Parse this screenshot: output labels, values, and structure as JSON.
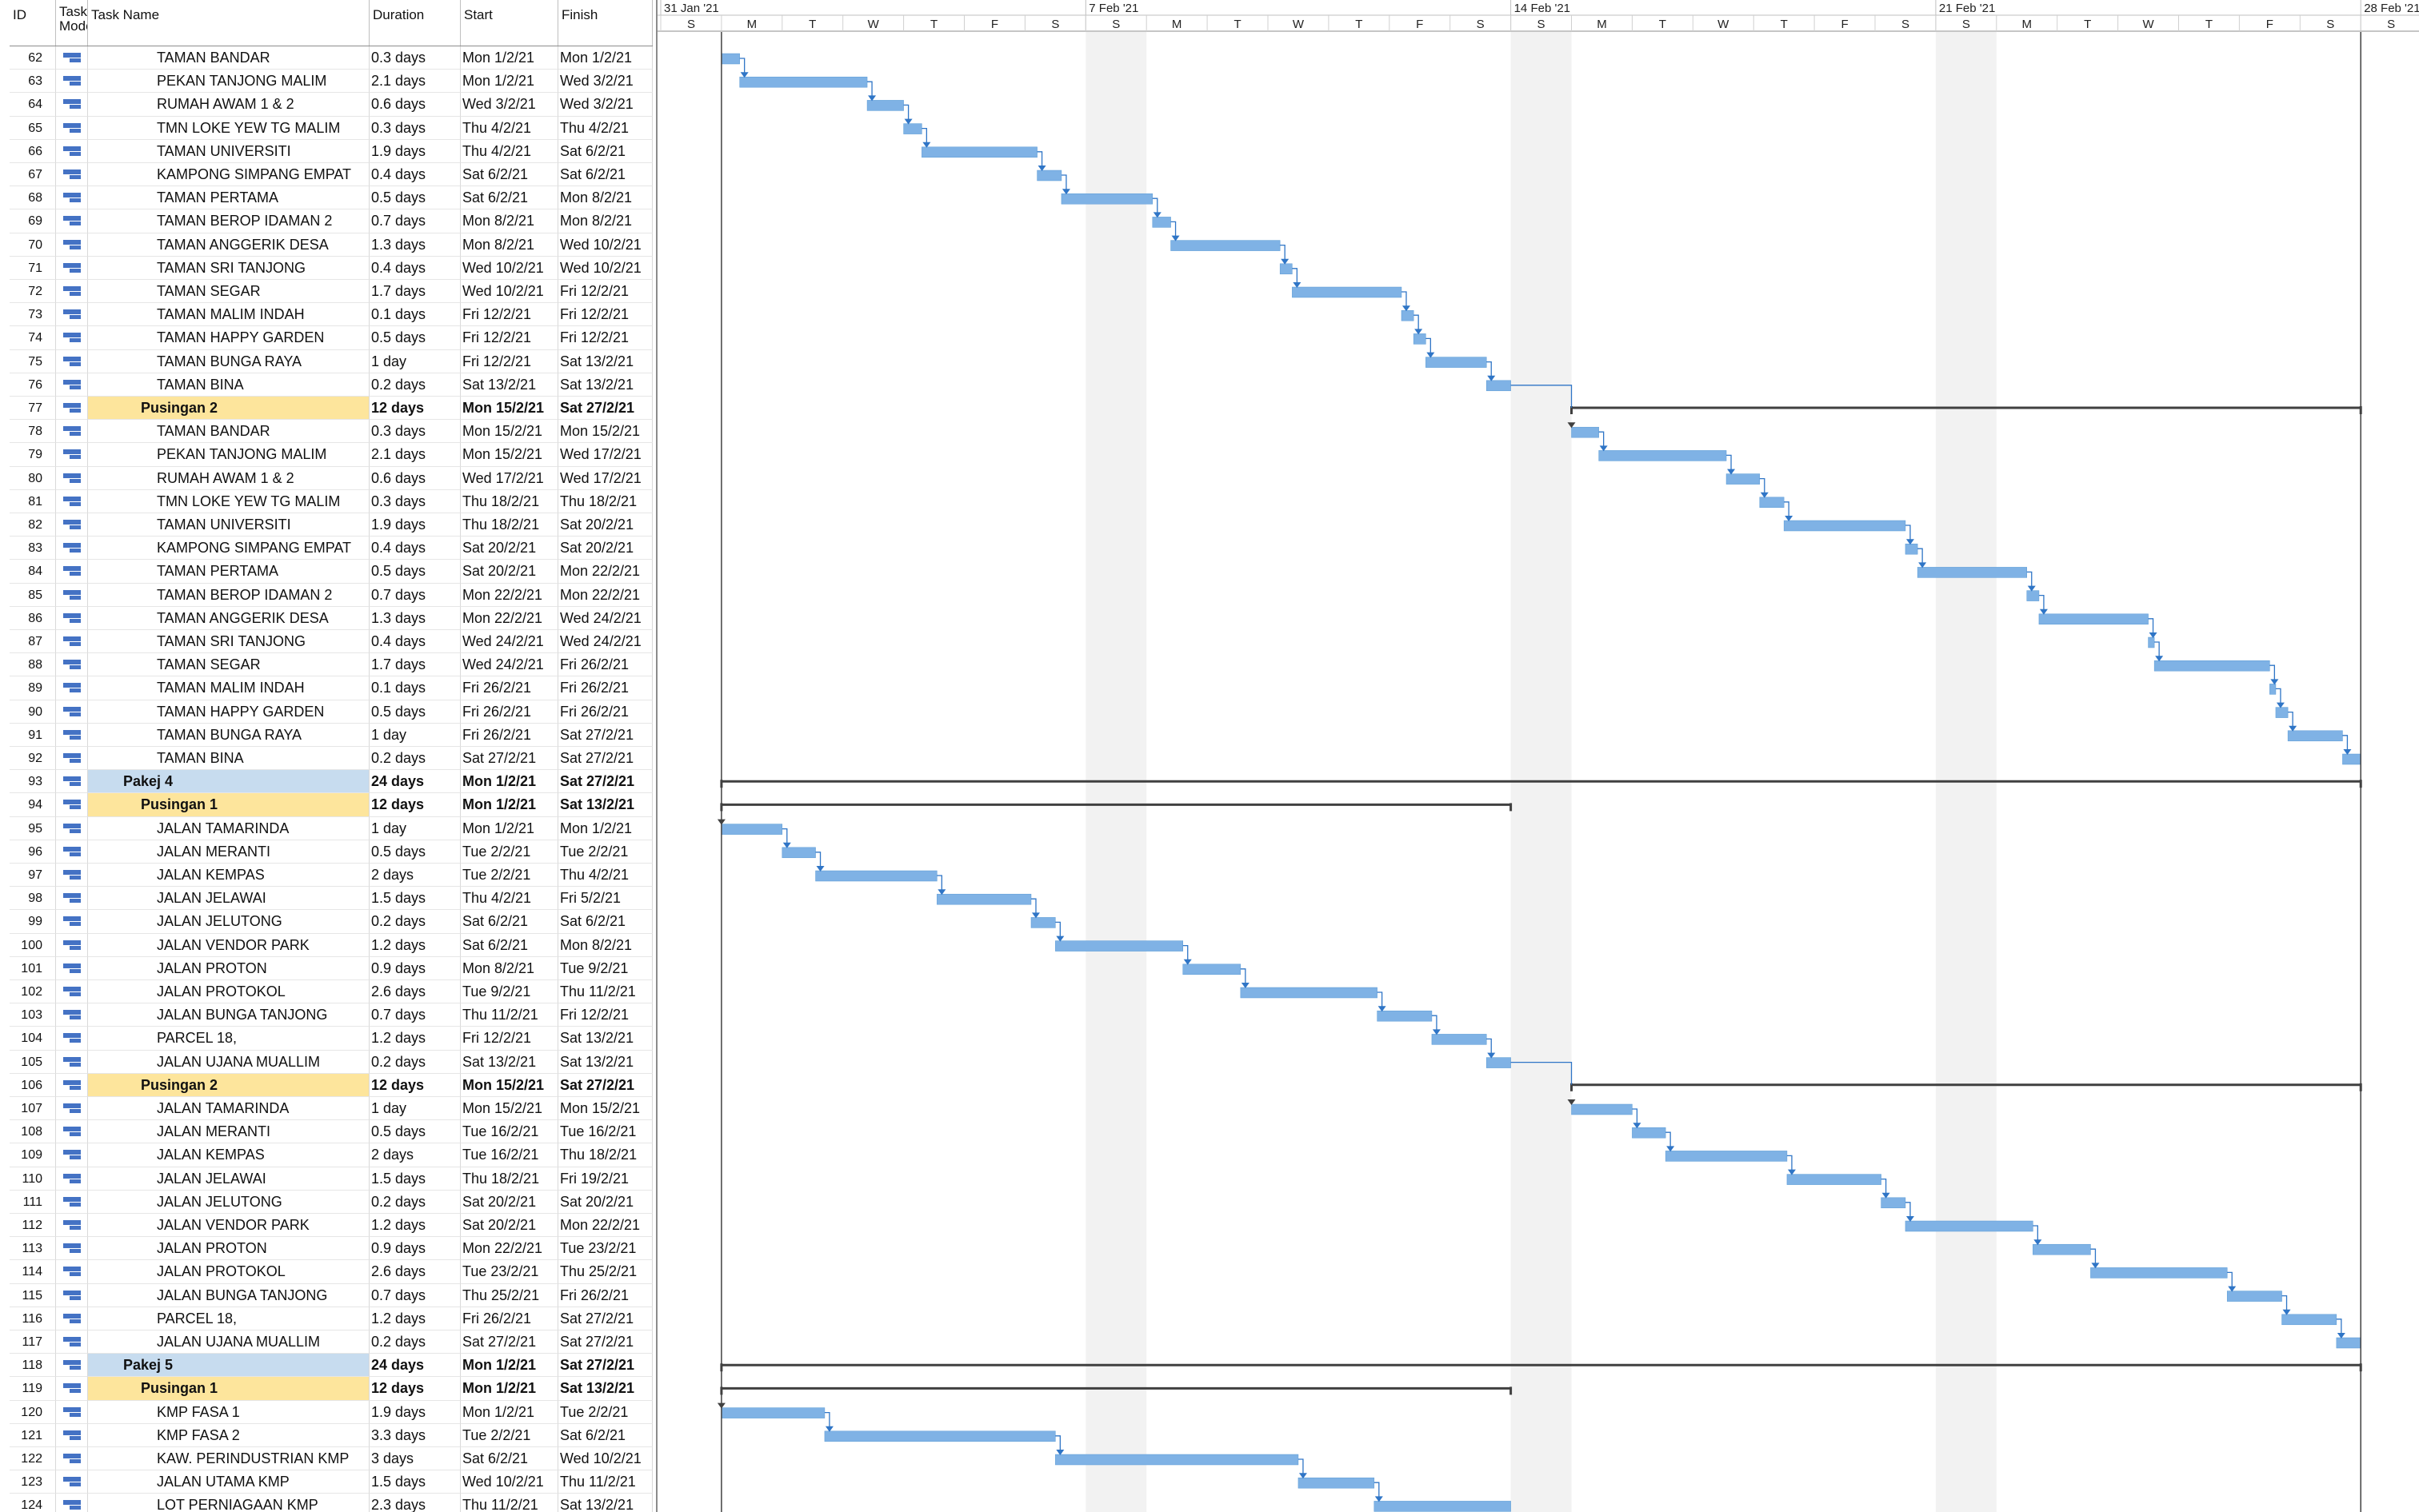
{
  "columns": {
    "id": "ID",
    "mode_line1": "Task",
    "mode_line2": "Mode",
    "name": "Task Name",
    "duration": "Duration",
    "start": "Start",
    "finish": "Finish"
  },
  "timescale": {
    "weeks": [
      "31 Jan '21",
      "7 Feb '21",
      "14 Feb '21",
      "21 Feb '21",
      "28 Feb '21"
    ],
    "days": [
      "S",
      "M",
      "T",
      "W",
      "T",
      "F",
      "S",
      "S",
      "M",
      "T",
      "W",
      "T",
      "F",
      "S",
      "S",
      "M",
      "T",
      "W",
      "T",
      "F",
      "S",
      "S",
      "M",
      "T",
      "W",
      "T",
      "F",
      "S",
      "S"
    ],
    "nonworking_day_indices": [
      7,
      14,
      21
    ]
  },
  "colors": {
    "task_bar": "#7fb2e5",
    "summary_bar": "#404040",
    "level1_highlight": "#c7dcef",
    "level2_highlight": "#fde59c",
    "nonworking_shade": "#f2f2f2",
    "link": "#2f75c6"
  },
  "rows": [
    {
      "id": "62",
      "name": "TAMAN BANDAR",
      "duration": "0.3 days",
      "start": "Mon 1/2/21",
      "finish": "Mon 1/2/21",
      "level": 3,
      "s": 1.0,
      "e": 1.3
    },
    {
      "id": "63",
      "name": "PEKAN TANJONG MALIM",
      "duration": "2.1 days",
      "start": "Mon 1/2/21",
      "finish": "Wed 3/2/21",
      "level": 3,
      "s": 1.3,
      "e": 3.4
    },
    {
      "id": "64",
      "name": "RUMAH AWAM 1 & 2",
      "duration": "0.6 days",
      "start": "Wed 3/2/21",
      "finish": "Wed 3/2/21",
      "level": 3,
      "s": 3.4,
      "e": 4.0
    },
    {
      "id": "65",
      "name": "TMN LOKE YEW TG MALIM",
      "duration": "0.3 days",
      "start": "Thu 4/2/21",
      "finish": "Thu 4/2/21",
      "level": 3,
      "s": 4.0,
      "e": 4.3
    },
    {
      "id": "66",
      "name": "TAMAN UNIVERSITI",
      "duration": "1.9 days",
      "start": "Thu 4/2/21",
      "finish": "Sat 6/2/21",
      "level": 3,
      "s": 4.3,
      "e": 6.2
    },
    {
      "id": "67",
      "name": "KAMPONG SIMPANG EMPAT",
      "duration": "0.4 days",
      "start": "Sat 6/2/21",
      "finish": "Sat 6/2/21",
      "level": 3,
      "s": 6.2,
      "e": 6.6
    },
    {
      "id": "68",
      "name": "TAMAN PERTAMA",
      "duration": "0.5 days",
      "start": "Sat 6/2/21",
      "finish": "Mon 8/2/21",
      "level": 3,
      "s": 6.6,
      "e": 8.1
    },
    {
      "id": "69",
      "name": "TAMAN BEROP IDAMAN 2",
      "duration": "0.7 days",
      "start": "Mon 8/2/21",
      "finish": "Mon 8/2/21",
      "level": 3,
      "s": 8.1,
      "e": 8.4
    },
    {
      "id": "70",
      "name": "TAMAN ANGGERIK DESA",
      "duration": "1.3 days",
      "start": "Mon 8/2/21",
      "finish": "Wed 10/2/21",
      "level": 3,
      "s": 8.4,
      "e": 10.2
    },
    {
      "id": "71",
      "name": "TAMAN SRI TANJONG",
      "duration": "0.4 days",
      "start": "Wed 10/2/21",
      "finish": "Wed 10/2/21",
      "level": 3,
      "s": 10.2,
      "e": 10.4
    },
    {
      "id": "72",
      "name": "TAMAN SEGAR",
      "duration": "1.7 days",
      "start": "Wed 10/2/21",
      "finish": "Fri 12/2/21",
      "level": 3,
      "s": 10.4,
      "e": 12.2
    },
    {
      "id": "73",
      "name": "TAMAN MALIM INDAH",
      "duration": "0.1 days",
      "start": "Fri 12/2/21",
      "finish": "Fri 12/2/21",
      "level": 3,
      "s": 12.2,
      "e": 12.4
    },
    {
      "id": "74",
      "name": "TAMAN HAPPY GARDEN",
      "duration": "0.5 days",
      "start": "Fri 12/2/21",
      "finish": "Fri 12/2/21",
      "level": 3,
      "s": 12.4,
      "e": 12.6
    },
    {
      "id": "75",
      "name": "TAMAN BUNGA RAYA",
      "duration": "1 day",
      "start": "Fri 12/2/21",
      "finish": "Sat 13/2/21",
      "level": 3,
      "s": 12.6,
      "e": 13.6
    },
    {
      "id": "76",
      "name": "TAMAN BINA",
      "duration": "0.2 days",
      "start": "Sat 13/2/21",
      "finish": "Sat 13/2/21",
      "level": 3,
      "s": 13.6,
      "e": 14.0
    },
    {
      "id": "77",
      "name": "Pusingan 2",
      "duration": "12 days",
      "start": "Mon 15/2/21",
      "finish": "Sat 27/2/21",
      "level": 2,
      "s": 15.0,
      "e": 28.0
    },
    {
      "id": "78",
      "name": "TAMAN BANDAR",
      "duration": "0.3 days",
      "start": "Mon 15/2/21",
      "finish": "Mon 15/2/21",
      "level": 3,
      "s": 15.0,
      "e": 15.45
    },
    {
      "id": "79",
      "name": "PEKAN TANJONG MALIM",
      "duration": "2.1 days",
      "start": "Mon 15/2/21",
      "finish": "Wed 17/2/21",
      "level": 3,
      "s": 15.45,
      "e": 17.55
    },
    {
      "id": "80",
      "name": "RUMAH AWAM 1 & 2",
      "duration": "0.6 days",
      "start": "Wed 17/2/21",
      "finish": "Wed 17/2/21",
      "level": 3,
      "s": 17.55,
      "e": 18.1
    },
    {
      "id": "81",
      "name": "TMN LOKE YEW TG MALIM",
      "duration": "0.3 days",
      "start": "Thu 18/2/21",
      "finish": "Thu 18/2/21",
      "level": 3,
      "s": 18.1,
      "e": 18.5
    },
    {
      "id": "82",
      "name": "TAMAN UNIVERSITI",
      "duration": "1.9 days",
      "start": "Thu 18/2/21",
      "finish": "Sat 20/2/21",
      "level": 3,
      "s": 18.5,
      "e": 20.5
    },
    {
      "id": "83",
      "name": "KAMPONG SIMPANG EMPAT",
      "duration": "0.4 days",
      "start": "Sat 20/2/21",
      "finish": "Sat 20/2/21",
      "level": 3,
      "s": 20.5,
      "e": 20.7
    },
    {
      "id": "84",
      "name": "TAMAN PERTAMA",
      "duration": "0.5 days",
      "start": "Sat 20/2/21",
      "finish": "Mon 22/2/21",
      "level": 3,
      "s": 20.7,
      "e": 22.5
    },
    {
      "id": "85",
      "name": "TAMAN BEROP IDAMAN 2",
      "duration": "0.7 days",
      "start": "Mon 22/2/21",
      "finish": "Mon 22/2/21",
      "level": 3,
      "s": 22.5,
      "e": 22.7
    },
    {
      "id": "86",
      "name": "TAMAN ANGGERIK DESA",
      "duration": "1.3 days",
      "start": "Mon 22/2/21",
      "finish": "Wed 24/2/21",
      "level": 3,
      "s": 22.7,
      "e": 24.5
    },
    {
      "id": "87",
      "name": "TAMAN SRI TANJONG",
      "duration": "0.4 days",
      "start": "Wed 24/2/21",
      "finish": "Wed 24/2/21",
      "level": 3,
      "s": 24.5,
      "e": 24.6
    },
    {
      "id": "88",
      "name": "TAMAN SEGAR",
      "duration": "1.7 days",
      "start": "Wed 24/2/21",
      "finish": "Fri 26/2/21",
      "level": 3,
      "s": 24.6,
      "e": 26.5
    },
    {
      "id": "89",
      "name": "TAMAN MALIM INDAH",
      "duration": "0.1 days",
      "start": "Fri 26/2/21",
      "finish": "Fri 26/2/21",
      "level": 3,
      "s": 26.5,
      "e": 26.6
    },
    {
      "id": "90",
      "name": "TAMAN HAPPY GARDEN",
      "duration": "0.5 days",
      "start": "Fri 26/2/21",
      "finish": "Fri 26/2/21",
      "level": 3,
      "s": 26.6,
      "e": 26.8
    },
    {
      "id": "91",
      "name": "TAMAN BUNGA RAYA",
      "duration": "1 day",
      "start": "Fri 26/2/21",
      "finish": "Sat 27/2/21",
      "level": 3,
      "s": 26.8,
      "e": 27.7
    },
    {
      "id": "92",
      "name": "TAMAN BINA",
      "duration": "0.2 days",
      "start": "Sat 27/2/21",
      "finish": "Sat 27/2/21",
      "level": 3,
      "s": 27.7,
      "e": 28.0
    },
    {
      "id": "93",
      "name": "Pakej 4",
      "duration": "24 days",
      "start": "Mon 1/2/21",
      "finish": "Sat 27/2/21",
      "level": 1,
      "s": 1.0,
      "e": 28.0
    },
    {
      "id": "94",
      "name": "Pusingan 1",
      "duration": "12 days",
      "start": "Mon 1/2/21",
      "finish": "Sat 13/2/21",
      "level": 2,
      "s": 1.0,
      "e": 14.0
    },
    {
      "id": "95",
      "name": "JALAN TAMARINDA",
      "duration": "1 day",
      "start": "Mon 1/2/21",
      "finish": "Mon 1/2/21",
      "level": 3,
      "s": 1.0,
      "e": 2.0
    },
    {
      "id": "96",
      "name": "JALAN MERANTI",
      "duration": "0.5 days",
      "start": "Tue 2/2/21",
      "finish": "Tue 2/2/21",
      "level": 3,
      "s": 2.0,
      "e": 2.55
    },
    {
      "id": "97",
      "name": "JALAN KEMPAS",
      "duration": "2 days",
      "start": "Tue 2/2/21",
      "finish": "Thu 4/2/21",
      "level": 3,
      "s": 2.55,
      "e": 4.55
    },
    {
      "id": "98",
      "name": "JALAN JELAWAI",
      "duration": "1.5 days",
      "start": "Thu 4/2/21",
      "finish": "Fri 5/2/21",
      "level": 3,
      "s": 4.55,
      "e": 6.1
    },
    {
      "id": "99",
      "name": "JALAN JELUTONG",
      "duration": "0.2 days",
      "start": "Sat 6/2/21",
      "finish": "Sat 6/2/21",
      "level": 3,
      "s": 6.1,
      "e": 6.5
    },
    {
      "id": "100",
      "name": "JALAN VENDOR PARK",
      "duration": "1.2 days",
      "start": "Sat 6/2/21",
      "finish": "Mon 8/2/21",
      "level": 3,
      "s": 6.5,
      "e": 8.6
    },
    {
      "id": "101",
      "name": "JALAN PROTON",
      "duration": "0.9 days",
      "start": "Mon 8/2/21",
      "finish": "Tue 9/2/21",
      "level": 3,
      "s": 8.6,
      "e": 9.55
    },
    {
      "id": "102",
      "name": "JALAN PROTOKOL",
      "duration": "2.6 days",
      "start": "Tue 9/2/21",
      "finish": "Thu 11/2/21",
      "level": 3,
      "s": 9.55,
      "e": 11.8
    },
    {
      "id": "103",
      "name": "JALAN BUNGA TANJONG",
      "duration": "0.7 days",
      "start": "Thu 11/2/21",
      "finish": "Fri 12/2/21",
      "level": 3,
      "s": 11.8,
      "e": 12.7
    },
    {
      "id": "104",
      "name": "PARCEL 18,",
      "duration": "1.2 days",
      "start": "Fri 12/2/21",
      "finish": "Sat 13/2/21",
      "level": 3,
      "s": 12.7,
      "e": 13.6
    },
    {
      "id": "105",
      "name": "JALAN UJANA MUALLIM",
      "duration": "0.2 days",
      "start": "Sat 13/2/21",
      "finish": "Sat 13/2/21",
      "level": 3,
      "s": 13.6,
      "e": 14.0
    },
    {
      "id": "106",
      "name": "Pusingan 2",
      "duration": "12 days",
      "start": "Mon 15/2/21",
      "finish": "Sat 27/2/21",
      "level": 2,
      "s": 15.0,
      "e": 28.0
    },
    {
      "id": "107",
      "name": "JALAN TAMARINDA",
      "duration": "1 day",
      "start": "Mon 15/2/21",
      "finish": "Mon 15/2/21",
      "level": 3,
      "s": 15.0,
      "e": 16.0
    },
    {
      "id": "108",
      "name": "JALAN MERANTI",
      "duration": "0.5 days",
      "start": "Tue 16/2/21",
      "finish": "Tue 16/2/21",
      "level": 3,
      "s": 16.0,
      "e": 16.55
    },
    {
      "id": "109",
      "name": "JALAN KEMPAS",
      "duration": "2 days",
      "start": "Tue 16/2/21",
      "finish": "Thu 18/2/21",
      "level": 3,
      "s": 16.55,
      "e": 18.55
    },
    {
      "id": "110",
      "name": "JALAN JELAWAI",
      "duration": "1.5 days",
      "start": "Thu 18/2/21",
      "finish": "Fri 19/2/21",
      "level": 3,
      "s": 18.55,
      "e": 20.1
    },
    {
      "id": "111",
      "name": "JALAN JELUTONG",
      "duration": "0.2 days",
      "start": "Sat 20/2/21",
      "finish": "Sat 20/2/21",
      "level": 3,
      "s": 20.1,
      "e": 20.5
    },
    {
      "id": "112",
      "name": "JALAN VENDOR PARK",
      "duration": "1.2 days",
      "start": "Sat 20/2/21",
      "finish": "Mon 22/2/21",
      "level": 3,
      "s": 20.5,
      "e": 22.6
    },
    {
      "id": "113",
      "name": "JALAN PROTON",
      "duration": "0.9 days",
      "start": "Mon 22/2/21",
      "finish": "Tue 23/2/21",
      "level": 3,
      "s": 22.6,
      "e": 23.55
    },
    {
      "id": "114",
      "name": "JALAN PROTOKOL",
      "duration": "2.6 days",
      "start": "Tue 23/2/21",
      "finish": "Thu 25/2/21",
      "level": 3,
      "s": 23.55,
      "e": 25.8
    },
    {
      "id": "115",
      "name": "JALAN BUNGA TANJONG",
      "duration": "0.7 days",
      "start": "Thu 25/2/21",
      "finish": "Fri 26/2/21",
      "level": 3,
      "s": 25.8,
      "e": 26.7
    },
    {
      "id": "116",
      "name": "PARCEL 18,",
      "duration": "1.2 days",
      "start": "Fri 26/2/21",
      "finish": "Sat 27/2/21",
      "level": 3,
      "s": 26.7,
      "e": 27.6
    },
    {
      "id": "117",
      "name": "JALAN UJANA MUALLIM",
      "duration": "0.2 days",
      "start": "Sat 27/2/21",
      "finish": "Sat 27/2/21",
      "level": 3,
      "s": 27.6,
      "e": 28.0
    },
    {
      "id": "118",
      "name": "Pakej 5",
      "duration": "24 days",
      "start": "Mon 1/2/21",
      "finish": "Sat 27/2/21",
      "level": 1,
      "s": 1.0,
      "e": 28.0
    },
    {
      "id": "119",
      "name": "Pusingan 1",
      "duration": "12 days",
      "start": "Mon 1/2/21",
      "finish": "Sat 13/2/21",
      "level": 2,
      "s": 1.0,
      "e": 14.0
    },
    {
      "id": "120",
      "name": "KMP FASA 1",
      "duration": "1.9 days",
      "start": "Mon 1/2/21",
      "finish": "Tue 2/2/21",
      "level": 3,
      "s": 1.0,
      "e": 2.7
    },
    {
      "id": "121",
      "name": "KMP FASA 2",
      "duration": "3.3 days",
      "start": "Tue 2/2/21",
      "finish": "Sat 6/2/21",
      "level": 3,
      "s": 2.7,
      "e": 6.5
    },
    {
      "id": "122",
      "name": "KAW. PERINDUSTRIAN KMP",
      "duration": "3 days",
      "start": "Sat 6/2/21",
      "finish": "Wed 10/2/21",
      "level": 3,
      "s": 6.5,
      "e": 10.5
    },
    {
      "id": "123",
      "name": "JALAN UTAMA KMP",
      "duration": "1.5 days",
      "start": "Wed 10/2/21",
      "finish": "Thu 11/2/21",
      "level": 3,
      "s": 10.5,
      "e": 11.75
    },
    {
      "id": "124",
      "name": "LOT PERNIAGAAN KMP",
      "duration": "2.3 days",
      "start": "Thu 11/2/21",
      "finish": "Sat 13/2/21",
      "level": 3,
      "s": 11.75,
      "e": 14.0
    }
  ]
}
